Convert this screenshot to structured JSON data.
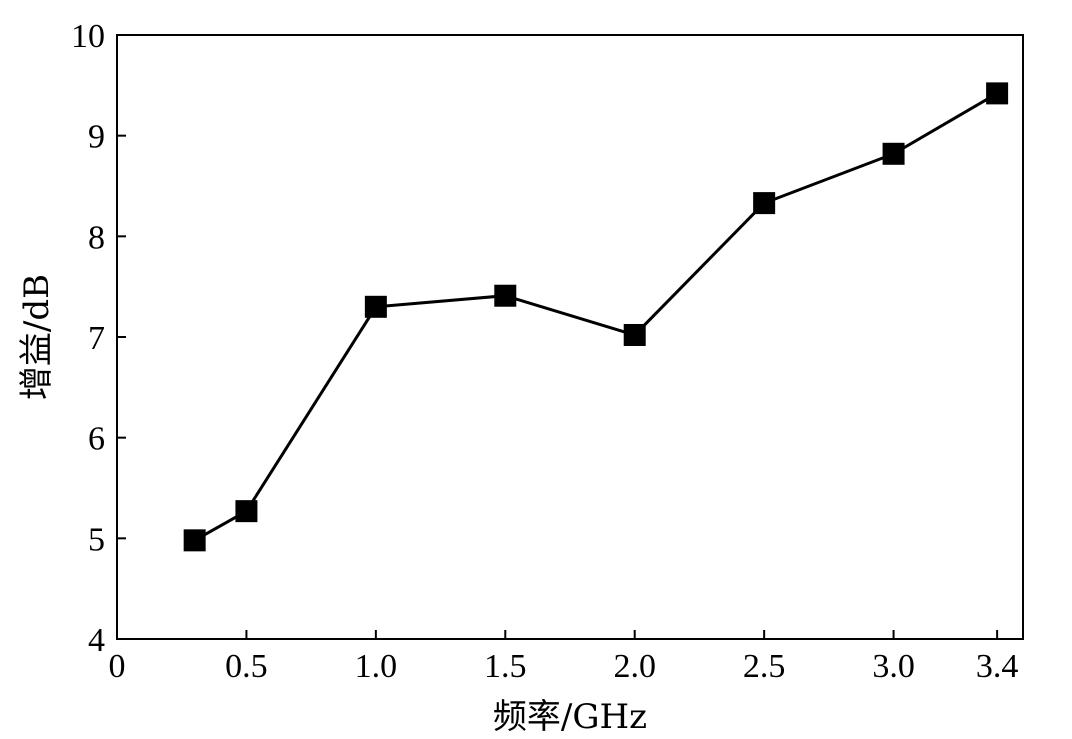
{
  "chart_data": {
    "type": "line",
    "title": "",
    "xlabel": "频率/GHz",
    "ylabel": "增益/dB",
    "xlim": [
      0,
      3.5
    ],
    "ylim": [
      4,
      10
    ],
    "xticks": [
      0,
      0.5,
      1.0,
      1.5,
      2.0,
      2.5,
      3.0,
      3.4
    ],
    "xtick_labels": [
      "0",
      "0.5",
      "1.0",
      "1.5",
      "2.0",
      "2.5",
      "3.0",
      "3.4"
    ],
    "yticks": [
      4,
      5,
      6,
      7,
      8,
      9,
      10
    ],
    "ytick_labels": [
      "4",
      "5",
      "6",
      "7",
      "8",
      "9",
      "10"
    ],
    "grid": false,
    "legend": "none",
    "series": [
      {
        "marker": "square",
        "color": "#000000",
        "x": [
          0.3,
          0.5,
          1.0,
          1.5,
          2.0,
          2.5,
          3.0,
          3.4
        ],
        "y": [
          4.98,
          5.27,
          7.3,
          7.41,
          7.02,
          8.33,
          8.82,
          9.42
        ]
      }
    ]
  }
}
